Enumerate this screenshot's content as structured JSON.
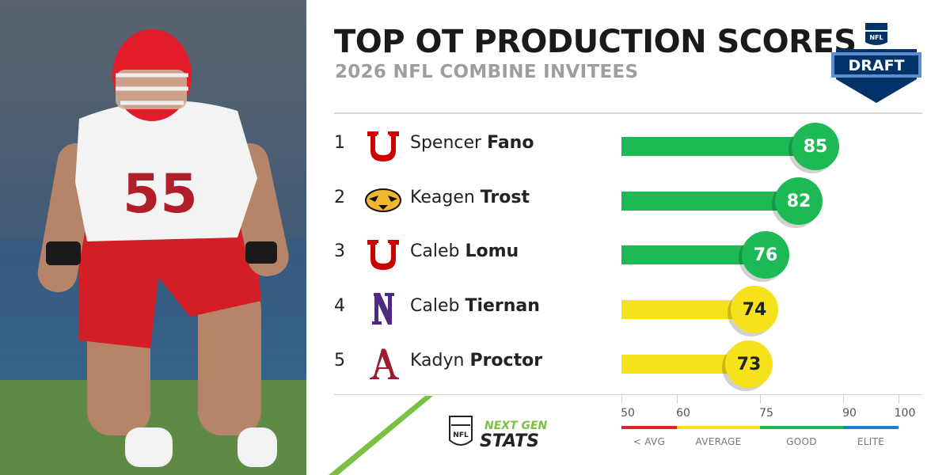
{
  "header": {
    "title": "TOP OT PRODUCTION SCORES",
    "subtitle": "2026 NFL COMBINE INVITEES"
  },
  "logos": {
    "league_logo": "nfl-draft-shield-icon",
    "brand_logo": "next-gen-stats-logo"
  },
  "players": [
    {
      "rank": "1",
      "first": "Spencer",
      "last": "Fano",
      "school_icon": "utah-u-icon",
      "score_label": "85"
    },
    {
      "rank": "2",
      "first": "Keagen",
      "last": "Trost",
      "school_icon": "missouri-tiger-icon",
      "score_label": "82"
    },
    {
      "rank": "3",
      "first": "Caleb",
      "last": "Lomu",
      "school_icon": "utah-u-icon",
      "score_label": "76"
    },
    {
      "rank": "4",
      "first": "Caleb",
      "last": "Tiernan",
      "school_icon": "northwestern-n-icon",
      "score_label": "74"
    },
    {
      "rank": "5",
      "first": "Kadyn",
      "last": "Proctor",
      "school_icon": "alabama-a-icon",
      "score_label": "73"
    }
  ],
  "chart_data": {
    "type": "bar",
    "orientation": "horizontal",
    "categories": [
      "Spencer Fano",
      "Keagen Trost",
      "Caleb Lomu",
      "Caleb Tiernan",
      "Kadyn Proctor"
    ],
    "values": [
      85,
      82,
      76,
      74,
      73
    ],
    "xlim": [
      50,
      100
    ],
    "grid": false,
    "scale_ticks": [
      "50",
      "60",
      "75",
      "90",
      "100"
    ],
    "bands": [
      {
        "label": "< AVG",
        "from": 50,
        "to": 60,
        "color": "#e0202a"
      },
      {
        "label": "AVERAGE",
        "from": 60,
        "to": 75,
        "color": "#f5e21b"
      },
      {
        "label": "GOOD",
        "from": 75,
        "to": 90,
        "color": "#1db954"
      },
      {
        "label": "ELITE",
        "from": 90,
        "to": 100,
        "color": "#1e7fc8"
      }
    ]
  },
  "colors": {
    "good": "#1db954",
    "average": "#f5e21b",
    "ngs_green": "#7ac143",
    "utah_red": "#cc0000",
    "nfl_blue": "#013369"
  }
}
